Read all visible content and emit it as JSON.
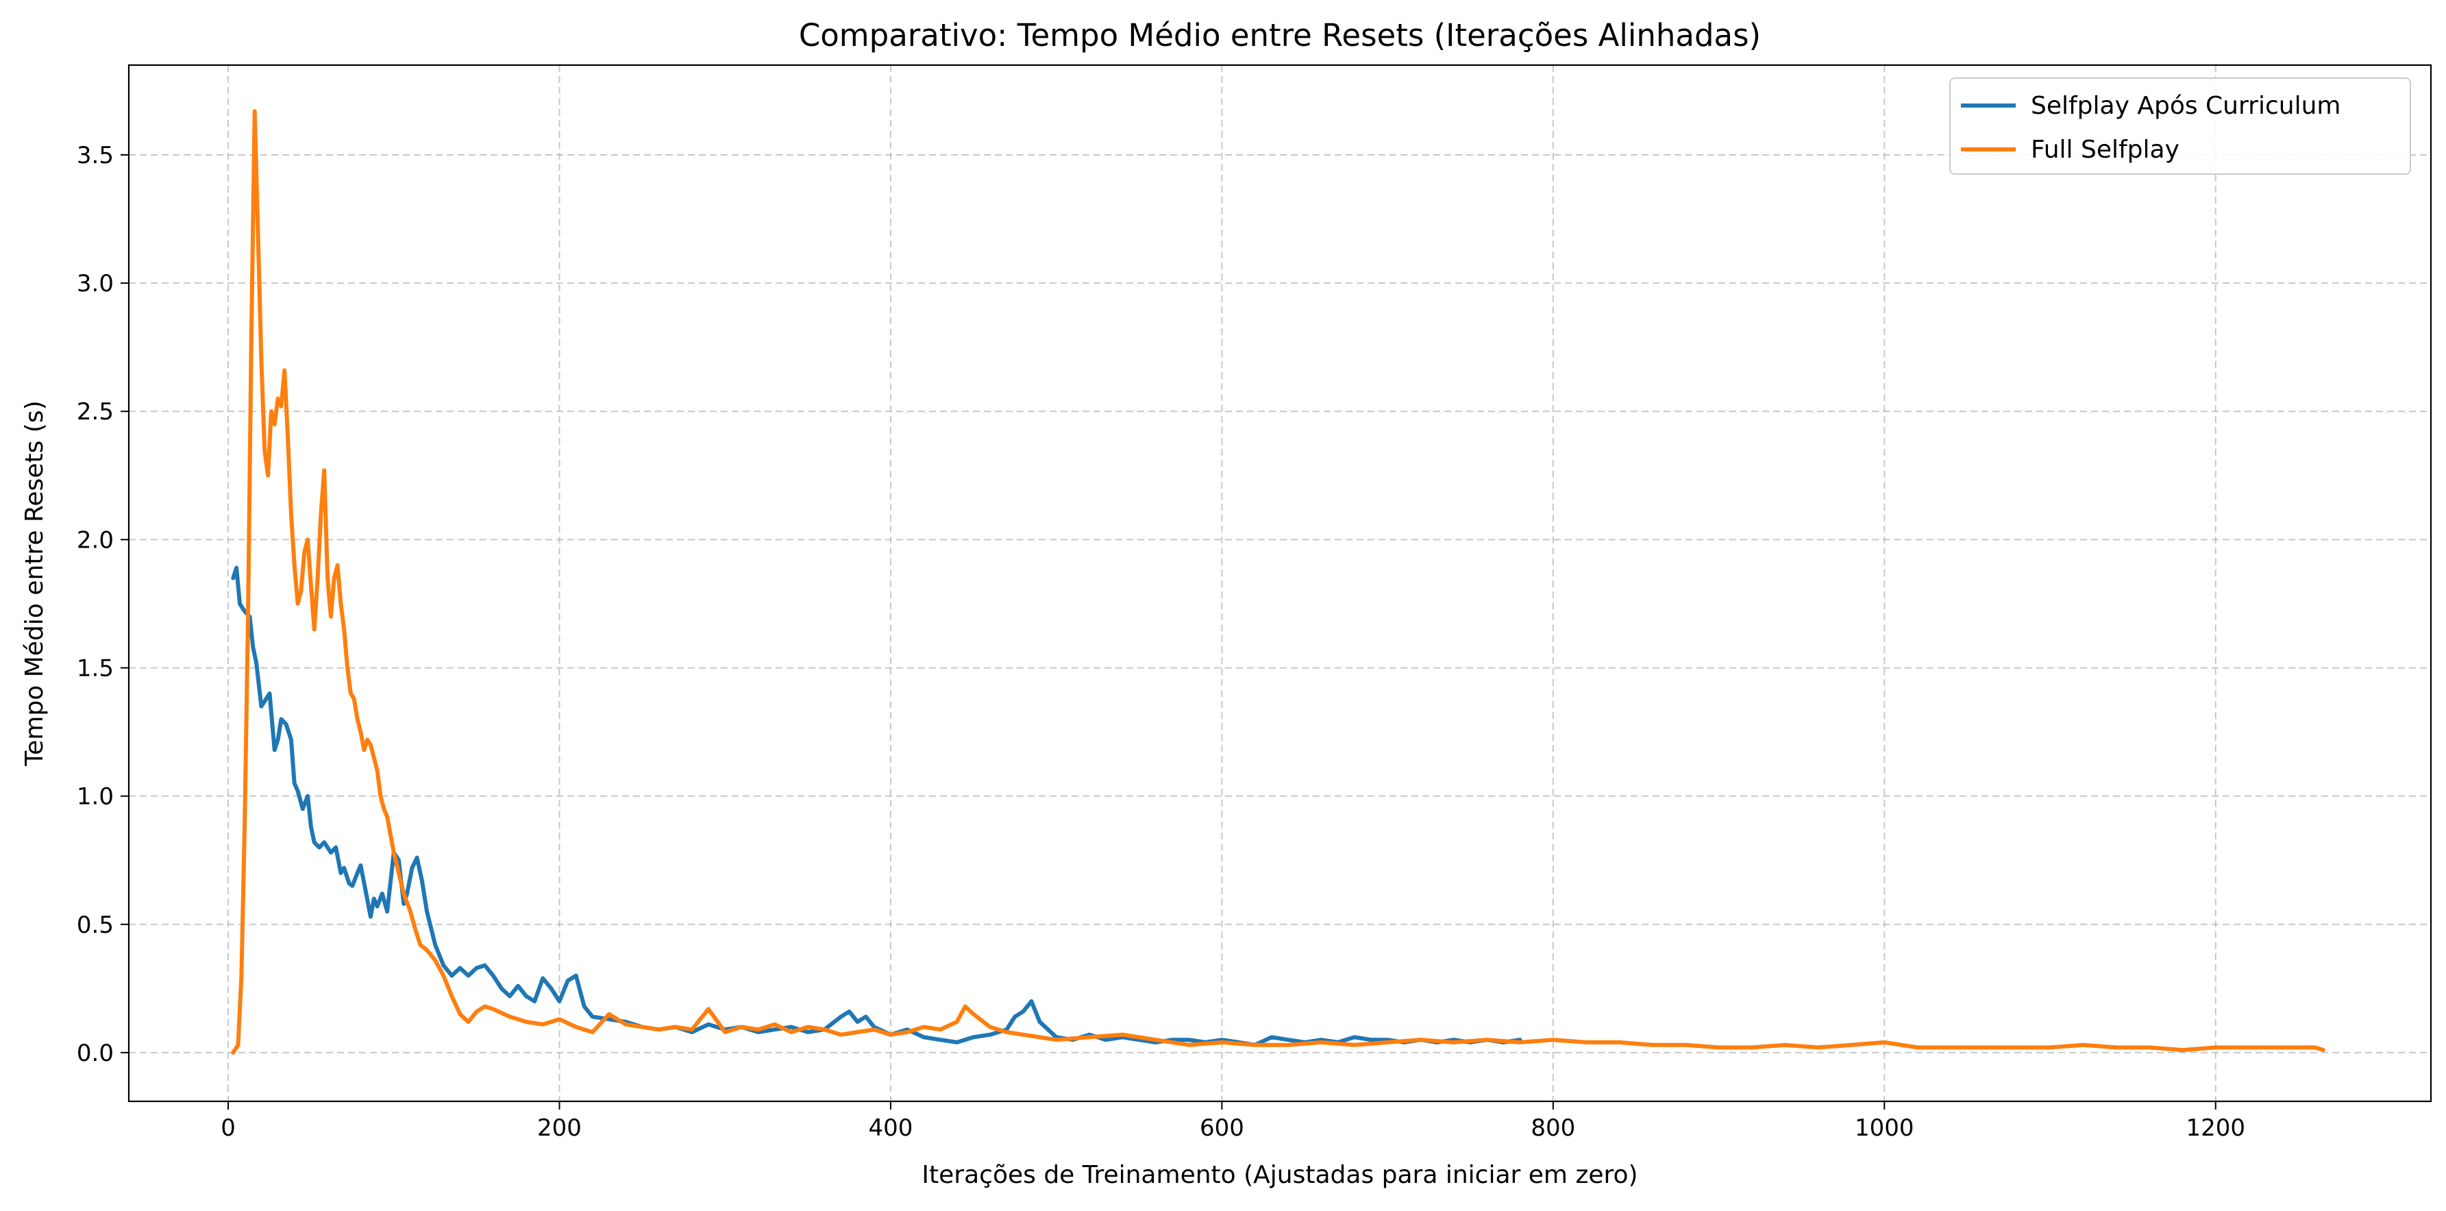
{
  "chart_data": {
    "type": "line",
    "title": "Comparativo: Tempo Médio entre Resets (Iterações Alinhadas)",
    "xlabel": "Iterações de Treinamento (Ajustadas para iniciar em zero)",
    "ylabel": "Tempo Médio entre Resets (s)",
    "xlim": [
      -60,
      1330
    ],
    "ylim": [
      -0.19,
      3.85
    ],
    "xticks": [
      0,
      200,
      400,
      600,
      800,
      1000,
      1200
    ],
    "xtick_labels": [
      "0",
      "200",
      "400",
      "600",
      "800",
      "1000",
      "1200"
    ],
    "yticks": [
      0.0,
      0.5,
      1.0,
      1.5,
      2.0,
      2.5,
      3.0,
      3.5
    ],
    "ytick_labels": [
      "0.0",
      "0.5",
      "1.0",
      "1.5",
      "2.0",
      "2.5",
      "3.0",
      "3.5"
    ],
    "grid": true,
    "legend_position": "top-right",
    "series": [
      {
        "name": "Selfplay Após Curriculum",
        "color": "#1f77b4",
        "x": [
          3,
          5,
          7,
          10,
          13,
          15,
          17,
          20,
          22,
          25,
          28,
          30,
          32,
          35,
          38,
          40,
          42,
          45,
          48,
          50,
          52,
          55,
          58,
          60,
          62,
          65,
          68,
          70,
          73,
          75,
          78,
          80,
          83,
          86,
          88,
          90,
          93,
          96,
          100,
          103,
          106,
          108,
          111,
          114,
          117,
          120,
          125,
          130,
          135,
          140,
          145,
          150,
          155,
          160,
          165,
          170,
          175,
          180,
          185,
          190,
          195,
          200,
          205,
          210,
          215,
          220,
          230,
          240,
          250,
          260,
          270,
          280,
          290,
          300,
          310,
          320,
          330,
          340,
          350,
          360,
          370,
          375,
          380,
          385,
          390,
          400,
          410,
          420,
          430,
          440,
          450,
          460,
          470,
          475,
          480,
          485,
          490,
          500,
          510,
          520,
          530,
          540,
          550,
          560,
          570,
          580,
          590,
          600,
          610,
          620,
          630,
          640,
          650,
          660,
          670,
          680,
          690,
          700,
          710,
          720,
          730,
          740,
          750,
          760,
          770,
          780
        ],
        "values": [
          1.85,
          1.89,
          1.75,
          1.72,
          1.7,
          1.58,
          1.52,
          1.35,
          1.37,
          1.4,
          1.18,
          1.22,
          1.3,
          1.28,
          1.22,
          1.05,
          1.02,
          0.95,
          1.0,
          0.88,
          0.82,
          0.8,
          0.82,
          0.8,
          0.78,
          0.8,
          0.7,
          0.72,
          0.66,
          0.65,
          0.7,
          0.73,
          0.63,
          0.53,
          0.6,
          0.57,
          0.62,
          0.55,
          0.78,
          0.75,
          0.58,
          0.62,
          0.72,
          0.76,
          0.67,
          0.55,
          0.42,
          0.34,
          0.3,
          0.33,
          0.3,
          0.33,
          0.34,
          0.3,
          0.25,
          0.22,
          0.26,
          0.22,
          0.2,
          0.29,
          0.25,
          0.2,
          0.28,
          0.3,
          0.18,
          0.14,
          0.13,
          0.12,
          0.1,
          0.09,
          0.1,
          0.08,
          0.11,
          0.09,
          0.1,
          0.08,
          0.09,
          0.1,
          0.08,
          0.09,
          0.14,
          0.16,
          0.12,
          0.14,
          0.1,
          0.07,
          0.09,
          0.06,
          0.05,
          0.04,
          0.06,
          0.07,
          0.09,
          0.14,
          0.16,
          0.2,
          0.12,
          0.06,
          0.05,
          0.07,
          0.05,
          0.06,
          0.05,
          0.04,
          0.05,
          0.05,
          0.04,
          0.05,
          0.04,
          0.03,
          0.06,
          0.05,
          0.04,
          0.05,
          0.04,
          0.06,
          0.05,
          0.05,
          0.04,
          0.05,
          0.04,
          0.05,
          0.04,
          0.05,
          0.04,
          0.05
        ]
      },
      {
        "name": "Full Selfplay",
        "color": "#ff7f0e",
        "x": [
          3,
          6,
          8,
          10,
          12,
          14,
          16,
          18,
          20,
          22,
          24,
          26,
          28,
          30,
          32,
          34,
          36,
          38,
          40,
          42,
          44,
          46,
          48,
          50,
          52,
          54,
          56,
          58,
          60,
          62,
          64,
          66,
          68,
          70,
          72,
          74,
          76,
          78,
          80,
          82,
          84,
          86,
          88,
          90,
          92,
          94,
          96,
          98,
          100,
          103,
          106,
          110,
          113,
          116,
          120,
          125,
          130,
          135,
          140,
          145,
          150,
          155,
          160,
          170,
          180,
          190,
          200,
          210,
          220,
          230,
          240,
          250,
          260,
          270,
          280,
          290,
          300,
          310,
          320,
          330,
          340,
          350,
          360,
          370,
          380,
          390,
          400,
          410,
          420,
          430,
          440,
          445,
          450,
          460,
          470,
          480,
          490,
          500,
          520,
          540,
          560,
          580,
          600,
          620,
          640,
          660,
          680,
          700,
          720,
          740,
          760,
          780,
          800,
          820,
          840,
          860,
          880,
          900,
          920,
          940,
          960,
          980,
          1000,
          1020,
          1040,
          1060,
          1080,
          1100,
          1120,
          1140,
          1160,
          1180,
          1200,
          1220,
          1240,
          1260,
          1265
        ],
        "values": [
          0.0,
          0.03,
          0.3,
          0.9,
          1.7,
          2.8,
          3.67,
          3.2,
          2.7,
          2.35,
          2.25,
          2.5,
          2.45,
          2.55,
          2.52,
          2.66,
          2.4,
          2.1,
          1.9,
          1.75,
          1.8,
          1.95,
          2.0,
          1.82,
          1.65,
          1.85,
          2.1,
          2.27,
          1.85,
          1.7,
          1.85,
          1.9,
          1.75,
          1.65,
          1.5,
          1.4,
          1.38,
          1.3,
          1.25,
          1.18,
          1.22,
          1.2,
          1.15,
          1.1,
          1.0,
          0.95,
          0.92,
          0.85,
          0.78,
          0.7,
          0.62,
          0.55,
          0.48,
          0.42,
          0.4,
          0.36,
          0.3,
          0.22,
          0.15,
          0.12,
          0.16,
          0.18,
          0.17,
          0.14,
          0.12,
          0.11,
          0.13,
          0.1,
          0.08,
          0.15,
          0.11,
          0.1,
          0.09,
          0.1,
          0.09,
          0.17,
          0.08,
          0.1,
          0.09,
          0.11,
          0.08,
          0.1,
          0.09,
          0.07,
          0.08,
          0.09,
          0.07,
          0.08,
          0.1,
          0.09,
          0.12,
          0.18,
          0.15,
          0.1,
          0.08,
          0.07,
          0.06,
          0.05,
          0.06,
          0.07,
          0.05,
          0.03,
          0.04,
          0.03,
          0.03,
          0.04,
          0.03,
          0.04,
          0.05,
          0.04,
          0.05,
          0.04,
          0.05,
          0.04,
          0.04,
          0.03,
          0.03,
          0.02,
          0.02,
          0.03,
          0.02,
          0.03,
          0.04,
          0.02,
          0.02,
          0.02,
          0.02,
          0.02,
          0.03,
          0.02,
          0.02,
          0.01,
          0.02,
          0.02,
          0.02,
          0.02,
          0.01
        ]
      }
    ]
  }
}
